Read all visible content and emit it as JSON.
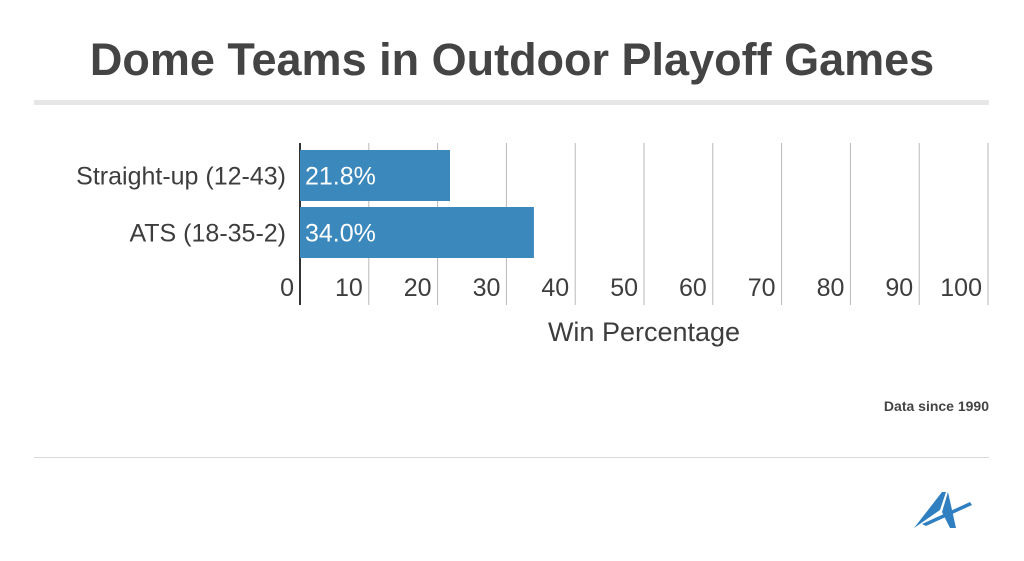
{
  "header": {
    "title": "Dome Teams in Outdoor Playoff Games"
  },
  "footer": {
    "note": "Data since 1990",
    "logo_icon": "action-network-logo-icon"
  },
  "colors": {
    "bar": "#3b88bd",
    "grid": "#b8b8b8",
    "axis": "#333333",
    "logo": "#2f7fc1"
  },
  "chart_data": {
    "type": "bar",
    "orientation": "horizontal",
    "categories": [
      "Straight-up (12-43)",
      "ATS (18-35-2)"
    ],
    "values": [
      21.8,
      34.0
    ],
    "value_labels": [
      "21.8%",
      "34.0%"
    ],
    "xlim": [
      0,
      100
    ],
    "x_ticks": [
      0,
      10,
      20,
      30,
      40,
      50,
      60,
      70,
      80,
      90,
      100
    ],
    "xlabel": "Win Percentage",
    "ylabel": "",
    "grid": true
  }
}
